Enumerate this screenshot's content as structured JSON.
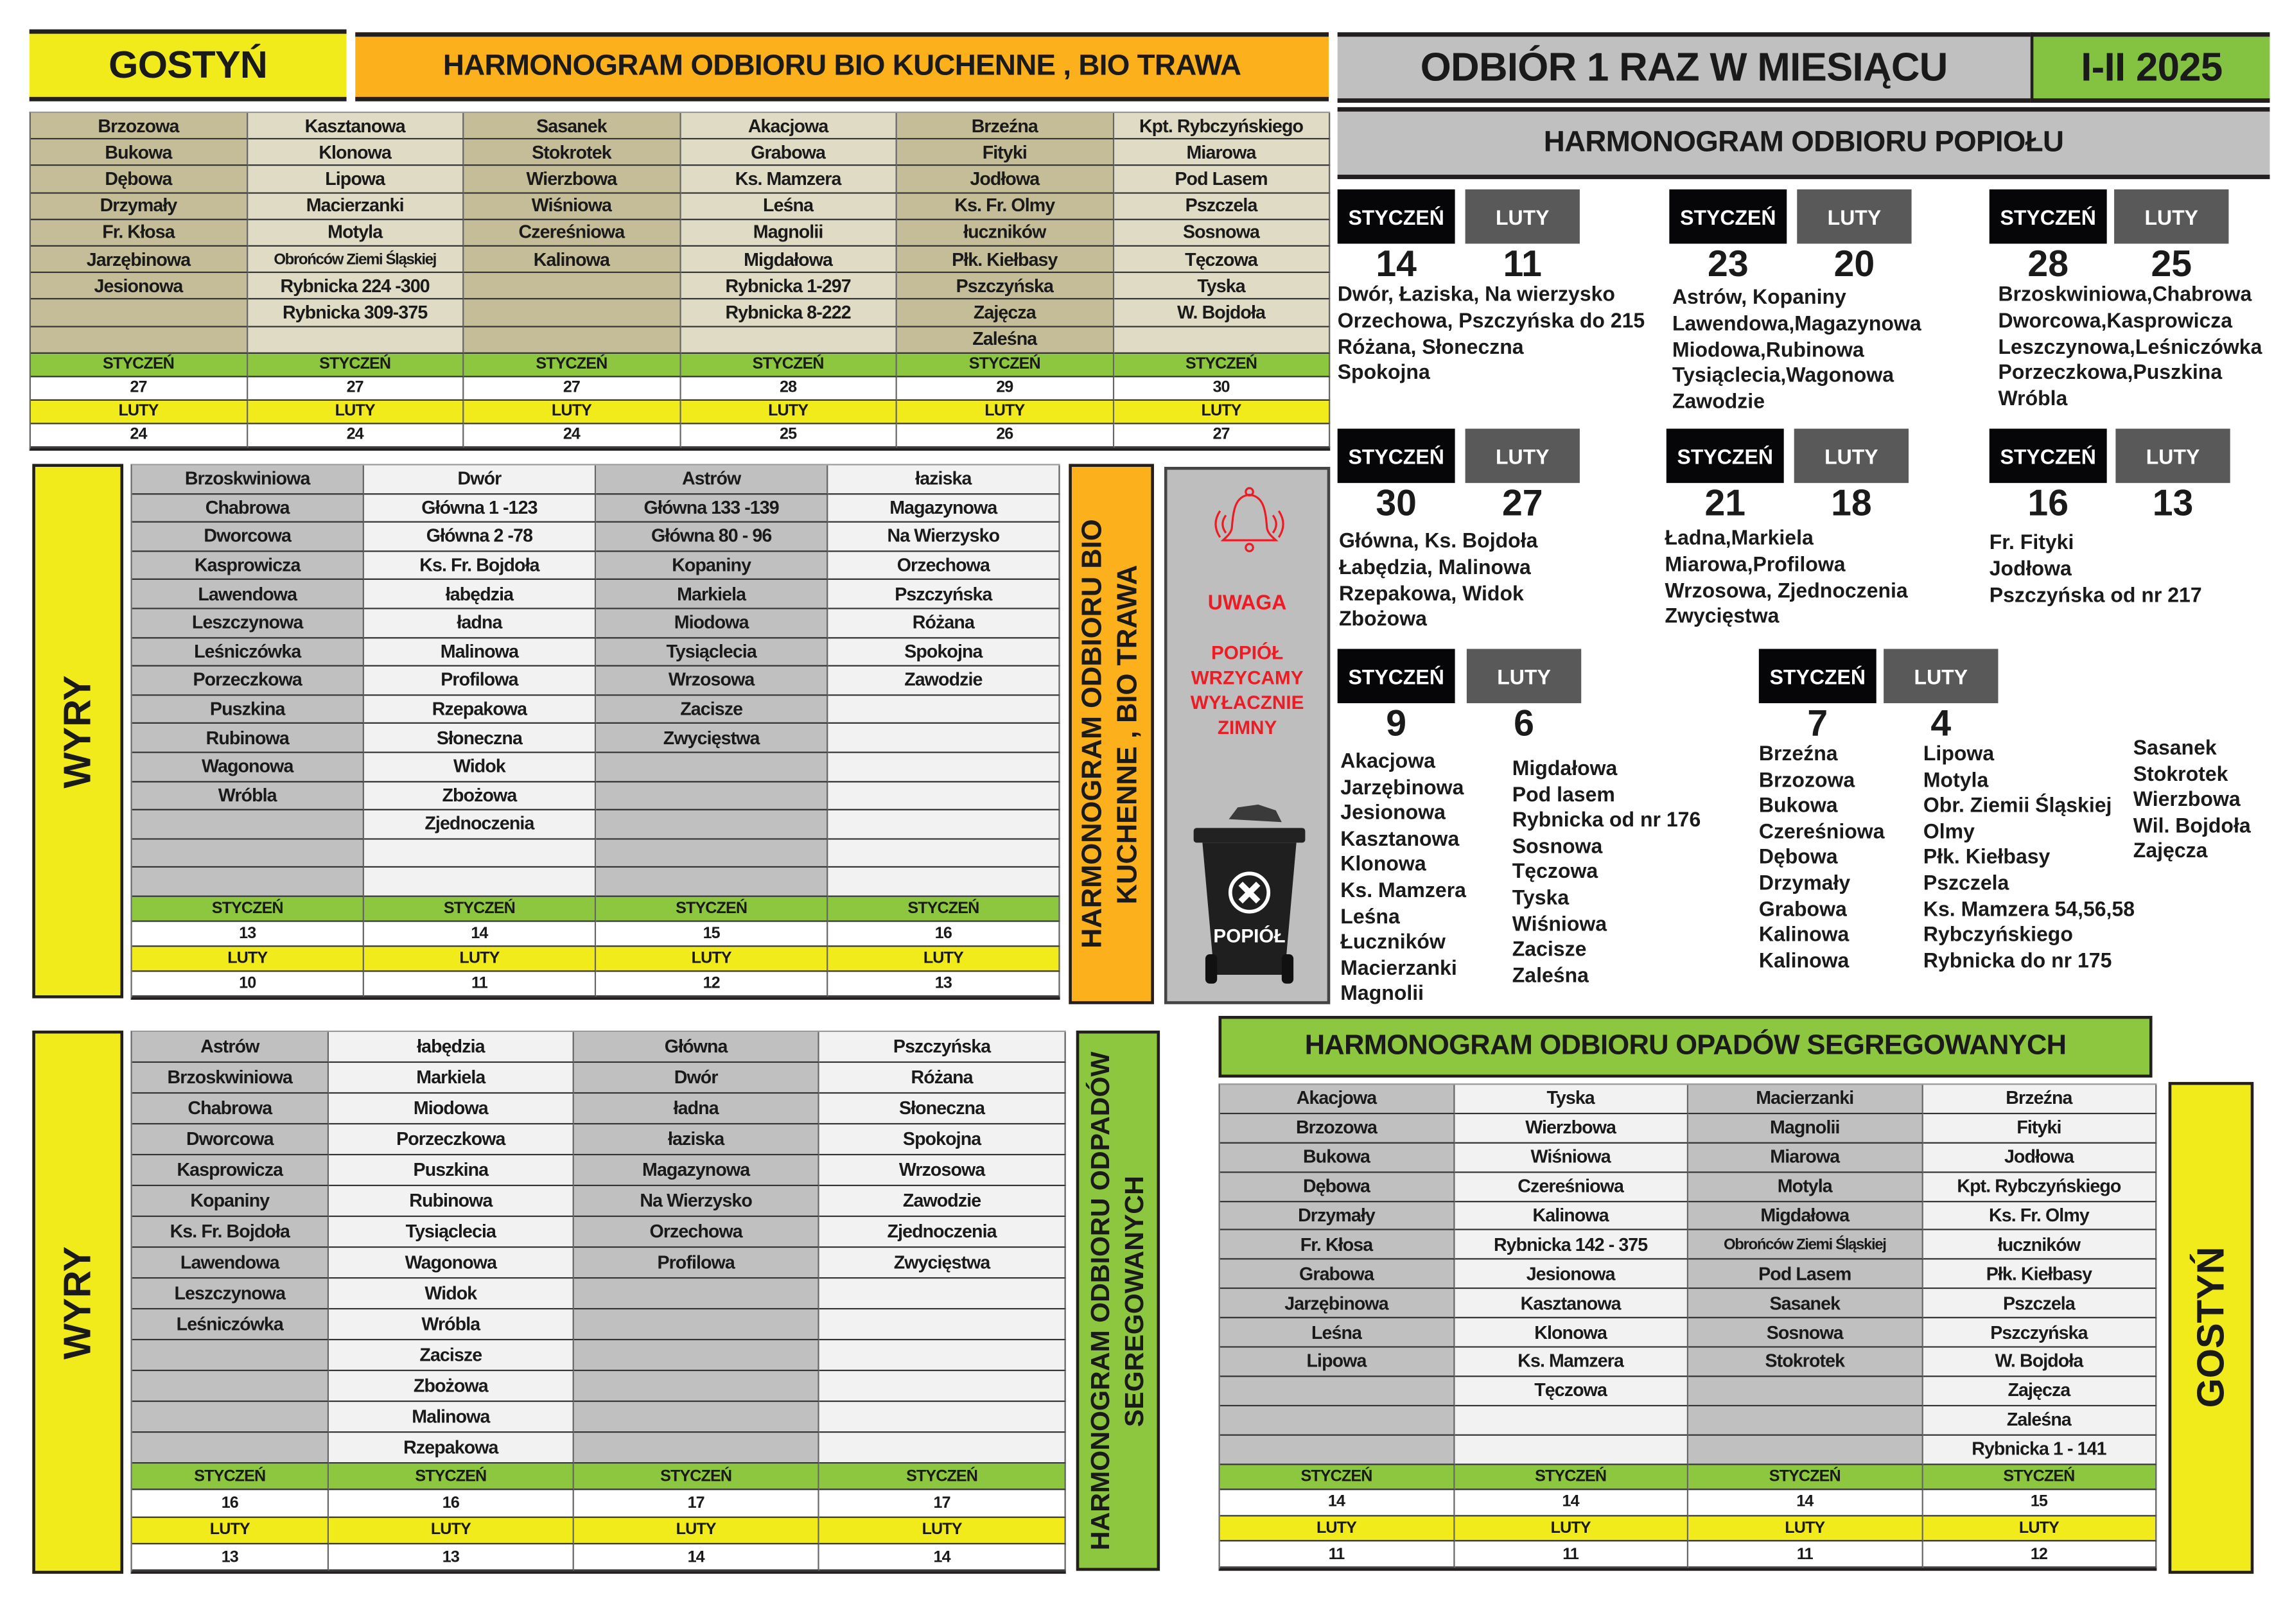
{
  "header": {
    "town_gostyn": "GOSTYŃ",
    "bio_title": "HARMONOGRAM ODBIORU BIO KUCHENNE , BIO TRAWA",
    "frequency": "ODBIÓR 1 RAZ W MIESIĄCU",
    "period": "I-II 2025"
  },
  "months": {
    "jan": "STYCZEŃ",
    "feb": "LUTY"
  },
  "colors": {
    "yellow": "#f2eb1c",
    "orange": "#fbb01c",
    "green": "#8dc63f",
    "gray": "#c0c0c0",
    "khaki_dark": "#c4bd98",
    "khaki_light": "#dfdbc5",
    "red": "#ed1c24"
  },
  "bio_gostyn": {
    "columns": [
      {
        "streets": [
          "Brzozowa",
          "Bukowa",
          "Dębowa",
          "Drzymały",
          "Fr. Kłosa",
          "Jarzębinowa",
          "Jesionowa",
          "",
          ""
        ],
        "jan": "27",
        "feb": "24"
      },
      {
        "streets": [
          "Kasztanowa",
          "Klonowa",
          "Lipowa",
          "Macierzanki",
          "Motyla",
          "Obrońców Ziemi Śląskiej",
          "Rybnicka 224 -300",
          "Rybnicka 309-375",
          ""
        ],
        "jan": "27",
        "feb": "24"
      },
      {
        "streets": [
          "Sasanek",
          "Stokrotek",
          "Wierzbowa",
          "Wiśniowa",
          "Czereśniowa",
          "Kalinowa",
          "",
          "",
          ""
        ],
        "jan": "27",
        "feb": "24"
      },
      {
        "streets": [
          "Akacjowa",
          "Grabowa",
          "Ks. Mamzera",
          "Leśna",
          "Magnolii",
          "Migdałowa",
          "Rybnicka 1-297",
          "Rybnicka 8-222",
          ""
        ],
        "jan": "28",
        "feb": "25"
      },
      {
        "streets": [
          "Brzeźna",
          "Fityki",
          "Jodłowa",
          "Ks. Fr. Olmy",
          "łuczników",
          "Płk. Kiełbasy",
          "Pszczyńska",
          "Zajęcza",
          "Zaleśna"
        ],
        "jan": "29",
        "feb": "26"
      },
      {
        "streets": [
          "Kpt. Rybczyńskiego",
          "Miarowa",
          "Pod Lasem",
          "Pszczela",
          "Sosnowa",
          "Tęczowa",
          "Tyska",
          "W. Bojdoła",
          ""
        ],
        "jan": "30",
        "feb": "27"
      }
    ]
  },
  "bio_wyry": {
    "label": "WYRY",
    "side_title": "HARMONOGRAM ODBIORU BIO KUCHENNE , BIO TRAWA",
    "columns": [
      {
        "streets": [
          "Brzoskwiniowa",
          "Chabrowa",
          "Dworcowa",
          "Kasprowicza",
          "Lawendowa",
          "Leszczynowa",
          "Leśniczówka",
          "Porzeczkowa",
          "Puszkina",
          "Rubinowa",
          "Wagonowa",
          "Wróbla",
          "",
          "",
          ""
        ],
        "jan": "13",
        "feb": "10"
      },
      {
        "streets": [
          "Dwór",
          "Główna  1 -123",
          "Główna  2 -78",
          "Ks. Fr. Bojdoła",
          "łabędzia",
          "ładna",
          "Malinowa",
          "Profilowa",
          "Rzepakowa",
          "Słoneczna",
          "Widok",
          "Zbożowa",
          "Zjednoczenia",
          "",
          ""
        ],
        "jan": "14",
        "feb": "11"
      },
      {
        "streets": [
          "Astrów",
          "Główna  133 -139",
          "Główna  80 - 96",
          "Kopaniny",
          "Markiela",
          "Miodowa",
          "Tysiąclecia",
          "Wrzosowa",
          "Zacisze",
          "Zwycięstwa",
          "",
          "",
          "",
          "",
          ""
        ],
        "jan": "15",
        "feb": "12"
      },
      {
        "streets": [
          "łaziska",
          "Magazynowa",
          "Na Wierzysko",
          "Orzechowa",
          "Pszczyńska",
          "Różana",
          "Spokojna",
          "Zawodzie",
          "",
          "",
          "",
          "",
          "",
          "",
          ""
        ],
        "jan": "16",
        "feb": "13"
      }
    ]
  },
  "warning": {
    "title": "UWAGA",
    "message_lines": [
      "POPIÓŁ",
      "WRZYCAMY",
      "WYŁACZNIE",
      "ZIMNY"
    ],
    "bin_label": "POPIÓŁ",
    "bell_icon": "bell-icon",
    "bin_icon": "trash-bin-icon"
  },
  "popiol": {
    "title": "HARMONOGRAM ODBIORU POPIOŁU",
    "groups": [
      {
        "jan": "14",
        "feb": "11",
        "lines": [
          "Dwór, Łaziska, Na wierzysko",
          "Orzechowa, Pszczyńska do 215",
          "Różana, Słoneczna",
          "Spokojna"
        ]
      },
      {
        "jan": "23",
        "feb": "20",
        "lines": [
          "Astrów, Kopaniny",
          "Lawendowa,Magazynowa",
          "Miodowa,Rubinowa",
          "Tysiąclecia,Wagonowa",
          "Zawodzie"
        ]
      },
      {
        "jan": "28",
        "feb": "25",
        "lines": [
          "Brzoskwiniowa,Chabrowa",
          "Dworcowa,Kasprowicza",
          "Leszczynowa,Leśniczówka",
          "Porzeczkowa,Puszkina",
          "Wróbla"
        ]
      },
      {
        "jan": "30",
        "feb": "27",
        "lines": [
          "Główna, Ks. Bojdoła",
          "Łabędzia, Malinowa",
          "Rzepakowa, Widok",
          "Zbożowa"
        ]
      },
      {
        "jan": "21",
        "feb": "18",
        "lines": [
          "Ładna,Markiela",
          "Miarowa,Profilowa",
          "Wrzosowa, Zjednoczenia",
          "Zwycięstwa"
        ]
      },
      {
        "jan": "16",
        "feb": "13",
        "lines": [
          "Fr. Fityki",
          "Jodłowa",
          "Pszczyńska od nr 217"
        ]
      },
      {
        "jan": "9",
        "feb": "6",
        "lists": [
          [
            "Akacjowa",
            "Jarzębinowa",
            "Jesionowa",
            "Kasztanowa",
            "Klonowa",
            "Ks. Mamzera",
            "Leśna",
            "Łuczników",
            "Macierzanki",
            "Magnolii"
          ],
          [
            "Migdałowa",
            "Pod lasem",
            "Rybnicka od nr 176",
            "Sosnowa",
            "Tęczowa",
            "Tyska",
            "Wiśniowa",
            "Zacisze",
            "Zaleśna"
          ]
        ]
      },
      {
        "jan": "7",
        "feb": "4",
        "lists": [
          [
            "Brzeźna",
            "Brzozowa",
            "Bukowa",
            "Czereśniowa",
            "Dębowa",
            "Drzymały",
            "Grabowa",
            "Kalinowa",
            "Kalinowa"
          ],
          [
            "Lipowa",
            "Motyla",
            "Obr. Ziemii Śląskiej",
            "Olmy",
            "Płk. Kiełbasy",
            "Pszczela",
            "Ks. Mamzera 54,56,58",
            "Rybczyńskiego",
            "Rybnicka do nr 175"
          ],
          [
            "Sasanek",
            "Stokrotek",
            "Wierzbowa",
            "Wil. Bojdoła",
            "Zajęcza"
          ]
        ]
      }
    ]
  },
  "segregowane_wyry": {
    "label": "WYRY",
    "side_title": "HARMONOGRAM ODBIORU ODPADÓW SEGREGOWANYCH",
    "columns": [
      {
        "streets": [
          "Astrów",
          "Brzoskwiniowa",
          "Chabrowa",
          "Dworcowa",
          "Kasprowicza",
          "Kopaniny",
          "Ks. Fr. Bojdoła",
          "Lawendowa",
          "Leszczynowa",
          "Leśniczówka",
          "",
          "",
          "",
          ""
        ],
        "jan": "16",
        "feb": "13"
      },
      {
        "streets": [
          "łabędzia",
          "Markiela",
          "Miodowa",
          "Porzeczkowa",
          "Puszkina",
          "Rubinowa",
          "Tysiąclecia",
          "Wagonowa",
          "Widok",
          "Wróbla",
          "Zacisze",
          "Zbożowa",
          "Malinowa",
          "Rzepakowa"
        ],
        "jan": "16",
        "feb": "13"
      },
      {
        "streets": [
          "Główna",
          "Dwór",
          "ładna",
          "łaziska",
          "Magazynowa",
          "Na Wierzysko",
          "Orzechowa",
          "Profilowa",
          "",
          "",
          "",
          "",
          "",
          ""
        ],
        "jan": "17",
        "feb": "14"
      },
      {
        "streets": [
          "Pszczyńska",
          "Różana",
          "Słoneczna",
          "Spokojna",
          "Wrzosowa",
          "Zawodzie",
          "Zjednoczenia",
          "Zwycięstwa",
          "",
          "",
          "",
          "",
          "",
          ""
        ],
        "jan": "17",
        "feb": "14"
      }
    ]
  },
  "segregowane_gostyn": {
    "title": "HARMONOGRAM ODBIORU OPADÓW SEGREGOWANYCH",
    "label": "GOSTYŃ",
    "columns": [
      {
        "streets": [
          "Akacjowa",
          "Brzozowa",
          "Bukowa",
          "Dębowa",
          "Drzymały",
          "Fr. Kłosa",
          "Grabowa",
          "Jarzębinowa",
          "Leśna",
          "Lipowa",
          "",
          "",
          ""
        ],
        "jan": "14",
        "feb": "11"
      },
      {
        "streets": [
          "Tyska",
          "Wierzbowa",
          "Wiśniowa",
          "Czereśniowa",
          "Kalinowa",
          "Rybnicka 142 - 375",
          "Jesionowa",
          "Kasztanowa",
          "Klonowa",
          "Ks. Mamzera",
          "Tęczowa",
          "",
          ""
        ],
        "jan": "14",
        "feb": "11"
      },
      {
        "streets": [
          "Macierzanki",
          "Magnolii",
          "Miarowa",
          "Motyla",
          "Migdałowa",
          "Obrońców Ziemi Śląskiej",
          "Pod Lasem",
          "Sasanek",
          "Sosnowa",
          "Stokrotek",
          "",
          "",
          ""
        ],
        "jan": "14",
        "feb": "11"
      },
      {
        "streets": [
          "Brzeźna",
          "Fityki",
          "Jodłowa",
          "Kpt. Rybczyńskiego",
          "Ks. Fr. Olmy",
          "łuczników",
          "Płk. Kiełbasy",
          "Pszczela",
          "Pszczyńska",
          "W. Bojdoła",
          "Zajęcza",
          "Zaleśna",
          "Rybnicka  1 - 141"
        ],
        "jan": "15",
        "feb": "12"
      }
    ]
  }
}
